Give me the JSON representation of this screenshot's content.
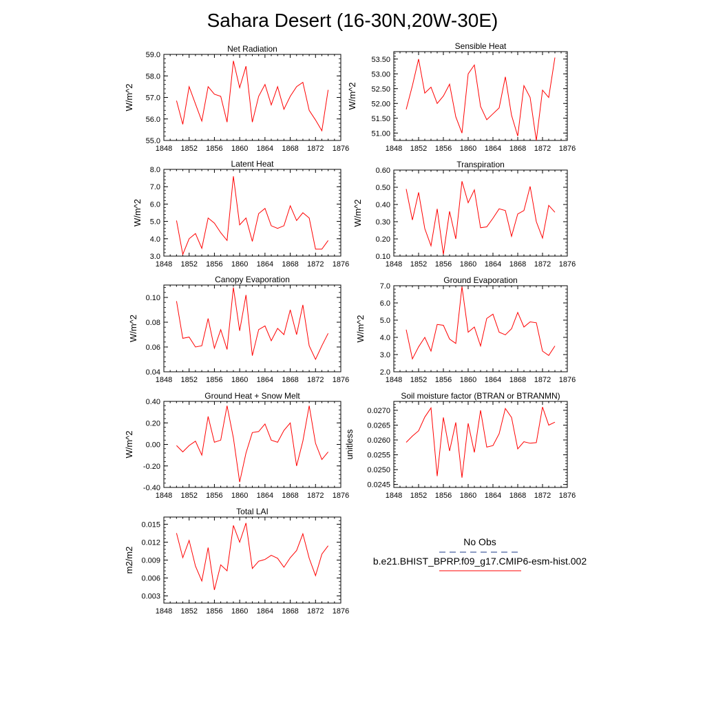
{
  "figure": {
    "title": "Sahara Desert (16-30N,20W-30E)"
  },
  "legend": {
    "entries": [
      {
        "label": "No Obs",
        "style": "dashed",
        "color": "#1a3a8a"
      },
      {
        "label": "b.e21.BHIST_BPRP.f09_g17.CMIP6-esm-hist.002",
        "style": "solid",
        "color": "#ff0000"
      }
    ]
  },
  "chart_data": [
    {
      "type": "line",
      "title": "Net Radiation",
      "ylabel": "W/m^2",
      "xlim": [
        1848,
        1876
      ],
      "ylim": [
        55.0,
        59.0
      ],
      "xticks": [
        1848,
        1852,
        1856,
        1860,
        1864,
        1868,
        1872,
        1876
      ],
      "yticks": [
        "55.0",
        "56.0",
        "57.0",
        "58.0",
        "59.0"
      ],
      "x": [
        1850,
        1851,
        1852,
        1853,
        1854,
        1855,
        1856,
        1857,
        1858,
        1859,
        1860,
        1861,
        1862,
        1863,
        1864,
        1865,
        1866,
        1867,
        1868,
        1869,
        1870,
        1871,
        1872,
        1873,
        1874
      ],
      "series": [
        {
          "color": "#ff0000",
          "values": [
            56.85,
            55.75,
            57.5,
            56.7,
            55.9,
            57.5,
            57.15,
            57.05,
            55.85,
            58.7,
            57.45,
            58.45,
            55.85,
            57.05,
            57.6,
            56.65,
            57.5,
            56.45,
            57.05,
            57.5,
            57.7,
            56.4,
            55.95,
            55.45,
            57.35
          ]
        }
      ]
    },
    {
      "type": "line",
      "title": "Sensible Heat",
      "ylabel": "W/m^2",
      "xlim": [
        1848,
        1876
      ],
      "ylim": [
        50.75,
        53.75
      ],
      "xticks": [
        1848,
        1852,
        1856,
        1860,
        1864,
        1868,
        1872,
        1876
      ],
      "yticks": [
        "51.00",
        "51.50",
        "52.00",
        "52.50",
        "53.00",
        "53.50"
      ],
      "x": [
        1850,
        1851,
        1852,
        1853,
        1854,
        1855,
        1856,
        1857,
        1858,
        1859,
        1860,
        1861,
        1862,
        1863,
        1864,
        1865,
        1866,
        1867,
        1868,
        1869,
        1870,
        1871,
        1872,
        1873,
        1874
      ],
      "series": [
        {
          "color": "#ff0000",
          "values": [
            51.8,
            52.6,
            53.5,
            52.35,
            52.55,
            52.0,
            52.25,
            52.65,
            51.55,
            51.0,
            53.0,
            53.3,
            51.9,
            51.45,
            51.65,
            51.85,
            52.9,
            51.6,
            50.9,
            52.6,
            52.2,
            50.75,
            52.45,
            52.2,
            53.55
          ]
        }
      ]
    },
    {
      "type": "line",
      "title": "Latent Heat",
      "ylabel": "W/m^2",
      "xlim": [
        1848,
        1876
      ],
      "ylim": [
        3.0,
        8.0
      ],
      "xticks": [
        1848,
        1852,
        1856,
        1860,
        1864,
        1868,
        1872,
        1876
      ],
      "yticks": [
        "3.0",
        "4.0",
        "5.0",
        "6.0",
        "7.0",
        "8.0"
      ],
      "x": [
        1850,
        1851,
        1852,
        1853,
        1854,
        1855,
        1856,
        1857,
        1858,
        1859,
        1860,
        1861,
        1862,
        1863,
        1864,
        1865,
        1866,
        1867,
        1868,
        1869,
        1870,
        1871,
        1872,
        1873,
        1874
      ],
      "series": [
        {
          "color": "#ff0000",
          "values": [
            5.05,
            3.1,
            4.0,
            4.3,
            3.45,
            5.2,
            4.9,
            4.35,
            3.9,
            7.6,
            4.8,
            5.2,
            3.85,
            5.45,
            5.75,
            4.75,
            4.6,
            4.75,
            5.9,
            5.05,
            5.5,
            5.2,
            3.4,
            3.4,
            3.9
          ]
        }
      ]
    },
    {
      "type": "line",
      "title": "Transpiration",
      "ylabel": "W/m^2",
      "xlim": [
        1848,
        1876
      ],
      "ylim": [
        0.1,
        0.6
      ],
      "xticks": [
        1848,
        1852,
        1856,
        1860,
        1864,
        1868,
        1872,
        1876
      ],
      "yticks": [
        "0.10",
        "0.20",
        "0.30",
        "0.40",
        "0.50",
        "0.60"
      ],
      "x": [
        1850,
        1851,
        1852,
        1853,
        1854,
        1855,
        1856,
        1857,
        1858,
        1859,
        1860,
        1861,
        1862,
        1863,
        1864,
        1865,
        1866,
        1867,
        1868,
        1869,
        1870,
        1871,
        1872,
        1873,
        1874
      ],
      "series": [
        {
          "color": "#ff0000",
          "values": [
            0.49,
            0.31,
            0.47,
            0.26,
            0.16,
            0.375,
            0.11,
            0.36,
            0.2,
            0.535,
            0.41,
            0.485,
            0.265,
            0.27,
            0.32,
            0.375,
            0.365,
            0.215,
            0.345,
            0.365,
            0.505,
            0.3,
            0.205,
            0.395,
            0.355
          ]
        }
      ]
    },
    {
      "type": "line",
      "title": "Canopy Evaporation",
      "ylabel": "W/m^2",
      "xlim": [
        1848,
        1876
      ],
      "ylim": [
        0.04,
        0.11
      ],
      "xticks": [
        1848,
        1852,
        1856,
        1860,
        1864,
        1868,
        1872,
        1876
      ],
      "yticks": [
        "0.04",
        "0.06",
        "0.08",
        "0.10"
      ],
      "x": [
        1850,
        1851,
        1852,
        1853,
        1854,
        1855,
        1856,
        1857,
        1858,
        1859,
        1860,
        1861,
        1862,
        1863,
        1864,
        1865,
        1866,
        1867,
        1868,
        1869,
        1870,
        1871,
        1872,
        1873,
        1874
      ],
      "series": [
        {
          "color": "#ff0000",
          "values": [
            0.097,
            0.067,
            0.068,
            0.06,
            0.061,
            0.083,
            0.059,
            0.074,
            0.058,
            0.108,
            0.073,
            0.102,
            0.053,
            0.074,
            0.077,
            0.065,
            0.075,
            0.07,
            0.09,
            0.07,
            0.094,
            0.061,
            0.05,
            0.061,
            0.071
          ]
        }
      ]
    },
    {
      "type": "line",
      "title": "Ground Evaporation",
      "ylabel": "W/m^2",
      "xlim": [
        1848,
        1876
      ],
      "ylim": [
        2.0,
        7.0
      ],
      "xticks": [
        1848,
        1852,
        1856,
        1860,
        1864,
        1868,
        1872,
        1876
      ],
      "yticks": [
        "2.0",
        "3.0",
        "4.0",
        "5.0",
        "6.0",
        "7.0"
      ],
      "x": [
        1850,
        1851,
        1852,
        1853,
        1854,
        1855,
        1856,
        1857,
        1858,
        1859,
        1860,
        1861,
        1862,
        1863,
        1864,
        1865,
        1866,
        1867,
        1868,
        1869,
        1870,
        1871,
        1872,
        1873,
        1874
      ],
      "series": [
        {
          "color": "#ff0000",
          "values": [
            4.45,
            2.75,
            3.45,
            4.0,
            3.2,
            4.75,
            4.7,
            3.9,
            3.65,
            6.95,
            4.3,
            4.6,
            3.5,
            5.1,
            5.35,
            4.3,
            4.15,
            4.5,
            5.45,
            4.6,
            4.9,
            4.85,
            3.2,
            2.95,
            3.5
          ]
        }
      ]
    },
    {
      "type": "line",
      "title": "Ground Heat + Snow Melt",
      "ylabel": "W/m^2",
      "xlim": [
        1848,
        1876
      ],
      "ylim": [
        -0.4,
        0.4
      ],
      "xticks": [
        1848,
        1852,
        1856,
        1860,
        1864,
        1868,
        1872,
        1876
      ],
      "yticks": [
        "-0.40",
        "-0.20",
        "0.00",
        "0.20",
        "0.40"
      ],
      "x": [
        1850,
        1851,
        1852,
        1853,
        1854,
        1855,
        1856,
        1857,
        1858,
        1859,
        1860,
        1861,
        1862,
        1863,
        1864,
        1865,
        1866,
        1867,
        1868,
        1869,
        1870,
        1871,
        1872,
        1873,
        1874
      ],
      "series": [
        {
          "color": "#ff0000",
          "values": [
            -0.01,
            -0.07,
            -0.01,
            0.03,
            -0.1,
            0.26,
            0.02,
            0.04,
            0.36,
            0.06,
            -0.35,
            -0.08,
            0.11,
            0.12,
            0.19,
            0.04,
            0.02,
            0.13,
            0.2,
            -0.2,
            0.03,
            0.36,
            0.01,
            -0.14,
            -0.07
          ]
        }
      ]
    },
    {
      "type": "line",
      "title": "Soil moisture factor (BTRAN or BTRANMN)",
      "ylabel": "unitless",
      "xlim": [
        1848,
        1876
      ],
      "ylim": [
        0.0244,
        0.0273
      ],
      "xticks": [
        1848,
        1852,
        1856,
        1860,
        1864,
        1868,
        1872,
        1876
      ],
      "yticks": [
        "0.0245",
        "0.0250",
        "0.0255",
        "0.0260",
        "0.0265",
        "0.0270"
      ],
      "x": [
        1850,
        1851,
        1852,
        1853,
        1854,
        1855,
        1856,
        1857,
        1858,
        1859,
        1860,
        1861,
        1862,
        1863,
        1864,
        1865,
        1866,
        1867,
        1868,
        1869,
        1870,
        1871,
        1872,
        1873,
        1874
      ],
      "series": [
        {
          "color": "#ff0000",
          "values": [
            0.02592,
            0.02613,
            0.02631,
            0.02677,
            0.02708,
            0.02478,
            0.02676,
            0.02563,
            0.02659,
            0.02473,
            0.02656,
            0.02558,
            0.027,
            0.02576,
            0.02581,
            0.02621,
            0.02706,
            0.02676,
            0.0257,
            0.02594,
            0.02589,
            0.02591,
            0.02711,
            0.0265,
            0.0266
          ]
        }
      ]
    },
    {
      "type": "line",
      "title": "Total LAI",
      "ylabel": "m2/m2",
      "xlim": [
        1848,
        1876
      ],
      "ylim": [
        0.0018,
        0.0162
      ],
      "xticks": [
        1848,
        1852,
        1856,
        1860,
        1864,
        1868,
        1872,
        1876
      ],
      "yticks": [
        "0.003",
        "0.006",
        "0.009",
        "0.012",
        "0.015"
      ],
      "x": [
        1850,
        1851,
        1852,
        1853,
        1854,
        1855,
        1856,
        1857,
        1858,
        1859,
        1860,
        1861,
        1862,
        1863,
        1864,
        1865,
        1866,
        1867,
        1868,
        1869,
        1870,
        1871,
        1872,
        1873,
        1874
      ],
      "series": [
        {
          "color": "#ff0000",
          "values": [
            0.0135,
            0.0094,
            0.0123,
            0.008,
            0.0055,
            0.0111,
            0.004,
            0.0082,
            0.0072,
            0.0148,
            0.012,
            0.0152,
            0.0076,
            0.0088,
            0.0091,
            0.0098,
            0.0093,
            0.0078,
            0.0094,
            0.0106,
            0.0134,
            0.0093,
            0.0064,
            0.01,
            0.0114
          ]
        }
      ]
    }
  ]
}
